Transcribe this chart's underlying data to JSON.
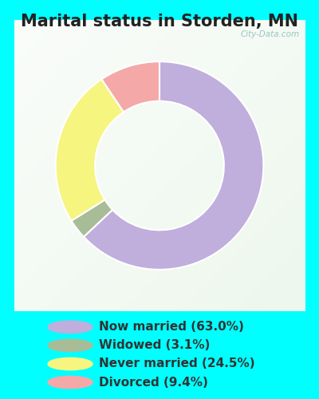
{
  "title": "Marital status in Storden, MN",
  "categories": [
    "Now married",
    "Widowed",
    "Never married",
    "Divorced"
  ],
  "values": [
    63.0,
    3.1,
    24.5,
    9.4
  ],
  "colors": [
    "#c0aedd",
    "#a8bc98",
    "#f5f580",
    "#f5a8a8"
  ],
  "legend_labels": [
    "Now married (63.0%)",
    "Widowed (3.1%)",
    "Never married (24.5%)",
    "Divorced (9.4%)"
  ],
  "bg_color": "#00ffff",
  "chart_bg_top": "#e8f5ee",
  "chart_bg_bottom": "#c8e8d8",
  "title_fontsize": 15,
  "legend_fontsize": 11,
  "watermark": "City-Data.com",
  "donut_width": 0.38,
  "start_angle": 90,
  "title_color": "#222222",
  "legend_text_color": "#333333"
}
